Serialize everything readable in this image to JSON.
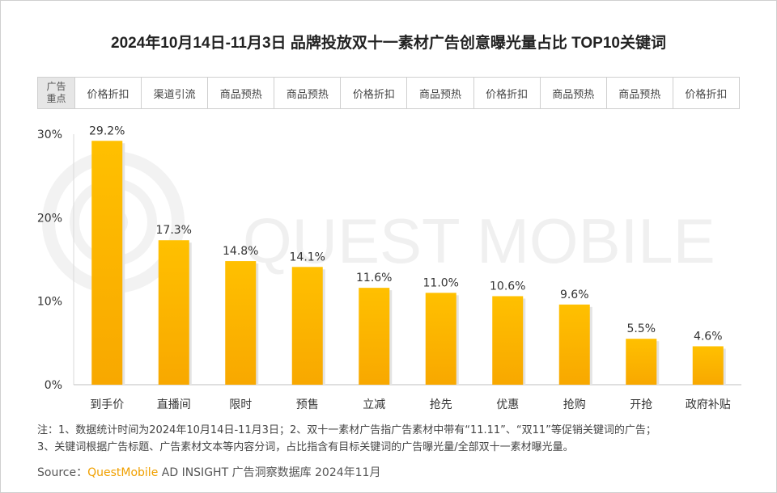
{
  "title": "2024年10月14日-11月3日 品牌投放双十一素材广告创意曝光量占比 TOP10关键词",
  "focus_header": [
    "广告",
    "重点"
  ],
  "focus_labels": [
    "价格折扣",
    "渠道引流",
    "商品预热",
    "商品预热",
    "价格折扣",
    "商品预热",
    "价格折扣",
    "商品预热",
    "商品预热",
    "价格折扣"
  ],
  "watermark": "QUEST MOBILE",
  "chart_data": {
    "type": "bar",
    "title": "2024年10月14日-11月3日 品牌投放双十一素材广告创意曝光量占比 TOP10关键词",
    "categories": [
      "到手价",
      "直播间",
      "限时",
      "预售",
      "立减",
      "抢先",
      "优惠",
      "抢购",
      "开抢",
      "政府补贴"
    ],
    "values": [
      29.2,
      17.3,
      14.8,
      14.1,
      11.6,
      11.0,
      10.6,
      9.6,
      5.5,
      4.6
    ],
    "value_labels": [
      "29.2%",
      "17.3%",
      "14.8%",
      "14.1%",
      "11.6%",
      "11.0%",
      "10.6%",
      "9.6%",
      "5.5%",
      "4.6%"
    ],
    "yticks": [
      0,
      10,
      20,
      30
    ],
    "ytick_labels": [
      "0%",
      "10%",
      "20%",
      "30%"
    ],
    "ylim": [
      0,
      30
    ],
    "xlabel": "",
    "ylabel": "",
    "grid": false,
    "bar_color_top": "#ffc000",
    "bar_color_bottom": "#f8a800"
  },
  "notes": {
    "line1": "注：1、数据统计时间为2024年10月14日-11月3日；2、双十一素材广告指广告素材中带有“11.11”、“双11”等促销关键词的广告；",
    "line2": "3、关键词根据广告标题、广告素材文本等内容分词，占比指含有目标关键词的广告曝光量/全部双十一素材曝光量。"
  },
  "source": {
    "prefix": "Source：",
    "brand": "QuestMobile",
    "suffix": " AD INSIGHT 广告洞察数据库 2024年11月"
  }
}
